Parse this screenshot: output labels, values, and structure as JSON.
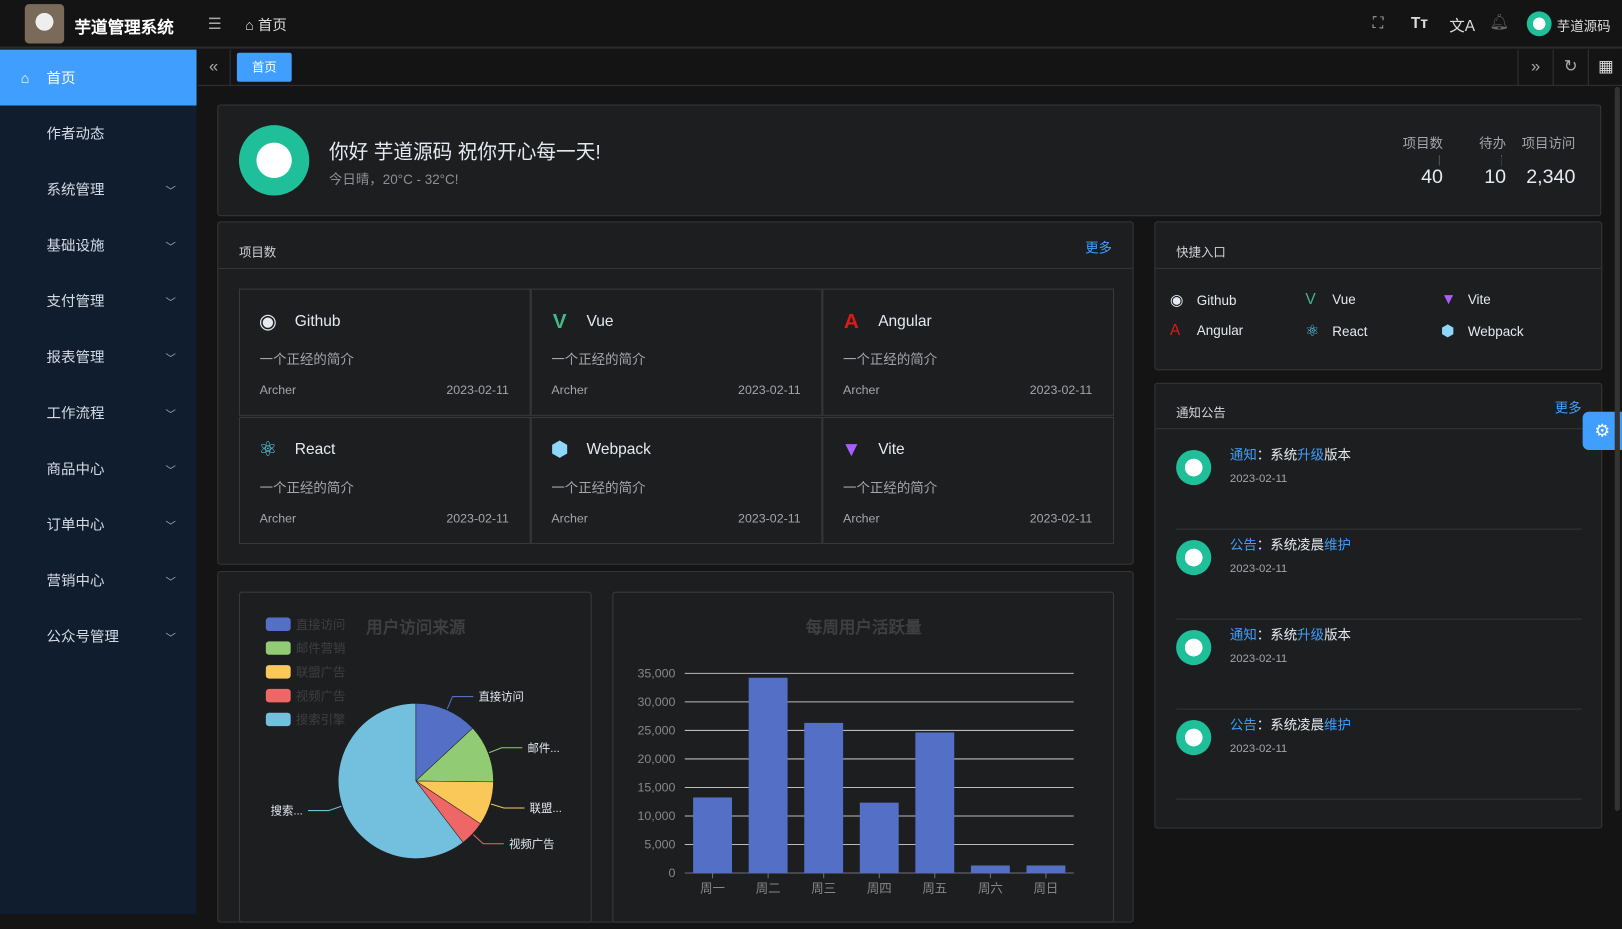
{
  "app": {
    "title": "芋道管理系统",
    "breadcrumb": "首页",
    "user": "芋道源码"
  },
  "sidebar": {
    "items": [
      {
        "label": "首页",
        "active": true
      },
      {
        "label": "作者动态"
      },
      {
        "label": "系统管理",
        "children": true
      },
      {
        "label": "基础设施",
        "children": true
      },
      {
        "label": "支付管理",
        "children": true
      },
      {
        "label": "报表管理",
        "children": true
      },
      {
        "label": "工作流程",
        "children": true
      },
      {
        "label": "商品中心",
        "children": true
      },
      {
        "label": "订单中心",
        "children": true
      },
      {
        "label": "营销中心",
        "children": true
      },
      {
        "label": "公众号管理",
        "children": true
      }
    ]
  },
  "tabs": [
    {
      "label": "首页",
      "active": true
    }
  ],
  "welcome": {
    "greeting": "你好 芋道源码 祝你开心每一天!",
    "weather": "今日晴，20°C - 32°C!",
    "stats": [
      {
        "label": "项目数",
        "value": "40"
      },
      {
        "label": "待办",
        "value": "10"
      },
      {
        "label": "项目访问",
        "value": "2,340"
      }
    ]
  },
  "projects": {
    "title": "项目数",
    "more": "更多",
    "items": [
      {
        "name": "Github",
        "icon": "github-icon",
        "color": "#e5eaf3",
        "desc": "一个正经的简介",
        "author": "Archer",
        "date": "2023-02-11"
      },
      {
        "name": "Vue",
        "icon": "vue-icon",
        "color": "#42b883",
        "desc": "一个正经的简介",
        "author": "Archer",
        "date": "2023-02-11"
      },
      {
        "name": "Angular",
        "icon": "angular-icon",
        "color": "#dd1b16",
        "desc": "一个正经的简介",
        "author": "Archer",
        "date": "2023-02-11"
      },
      {
        "name": "React",
        "icon": "react-icon",
        "color": "#61dafb",
        "desc": "一个正经的简介",
        "author": "Archer",
        "date": "2023-02-11"
      },
      {
        "name": "Webpack",
        "icon": "webpack-icon",
        "color": "#8ed6fb",
        "desc": "一个正经的简介",
        "author": "Archer",
        "date": "2023-02-11"
      },
      {
        "name": "Vite",
        "icon": "vite-icon",
        "color": "#a95cff",
        "desc": "一个正经的简介",
        "author": "Archer",
        "date": "2023-02-11"
      }
    ]
  },
  "shortcuts": {
    "title": "快捷入口",
    "items": [
      "Github",
      "Vue",
      "Vite",
      "Angular",
      "React",
      "Webpack"
    ]
  },
  "notices": {
    "title": "通知公告",
    "more": "更多",
    "items": [
      {
        "type": "通知",
        "sep": "：",
        "pre": "系统",
        "hl": "升级",
        "post": "版本",
        "date": "2023-02-11"
      },
      {
        "type": "公告",
        "sep": "：",
        "pre": "系统凌晨",
        "hl": "维护",
        "post": "",
        "date": "2023-02-11"
      },
      {
        "type": "通知",
        "sep": "：",
        "pre": "系统",
        "hl": "升级",
        "post": "版本",
        "date": "2023-02-11"
      },
      {
        "type": "公告",
        "sep": "：",
        "pre": "系统凌晨",
        "hl": "维护",
        "post": "",
        "date": "2023-02-11"
      }
    ]
  },
  "chart_data": [
    {
      "type": "pie",
      "title": "用户访问来源",
      "legend": "top-left",
      "categories": [
        "直接访问",
        "邮件营销",
        "联盟广告",
        "视频广告",
        "搜索引擎"
      ],
      "labels": [
        "直接访问",
        "邮件...",
        "联盟...",
        "视频广告",
        "搜索..."
      ],
      "values": [
        335,
        310,
        234,
        135,
        1548
      ],
      "colors": [
        "#5470c6",
        "#91cc75",
        "#fac858",
        "#ee6666",
        "#73c0de"
      ]
    },
    {
      "type": "bar",
      "title": "每周用户活跃量",
      "categories": [
        "周一",
        "周二",
        "周三",
        "周四",
        "周五",
        "周六",
        "周日"
      ],
      "values": [
        13253,
        34235,
        26321,
        12340,
        24643,
        1322,
        1324
      ],
      "ylim": [
        0,
        35000
      ],
      "yticks": [
        "0",
        "5,000",
        "10,000",
        "15,000",
        "20,000",
        "25,000",
        "30,000",
        "35,000"
      ],
      "grid": true,
      "color": "#5470c6"
    }
  ]
}
